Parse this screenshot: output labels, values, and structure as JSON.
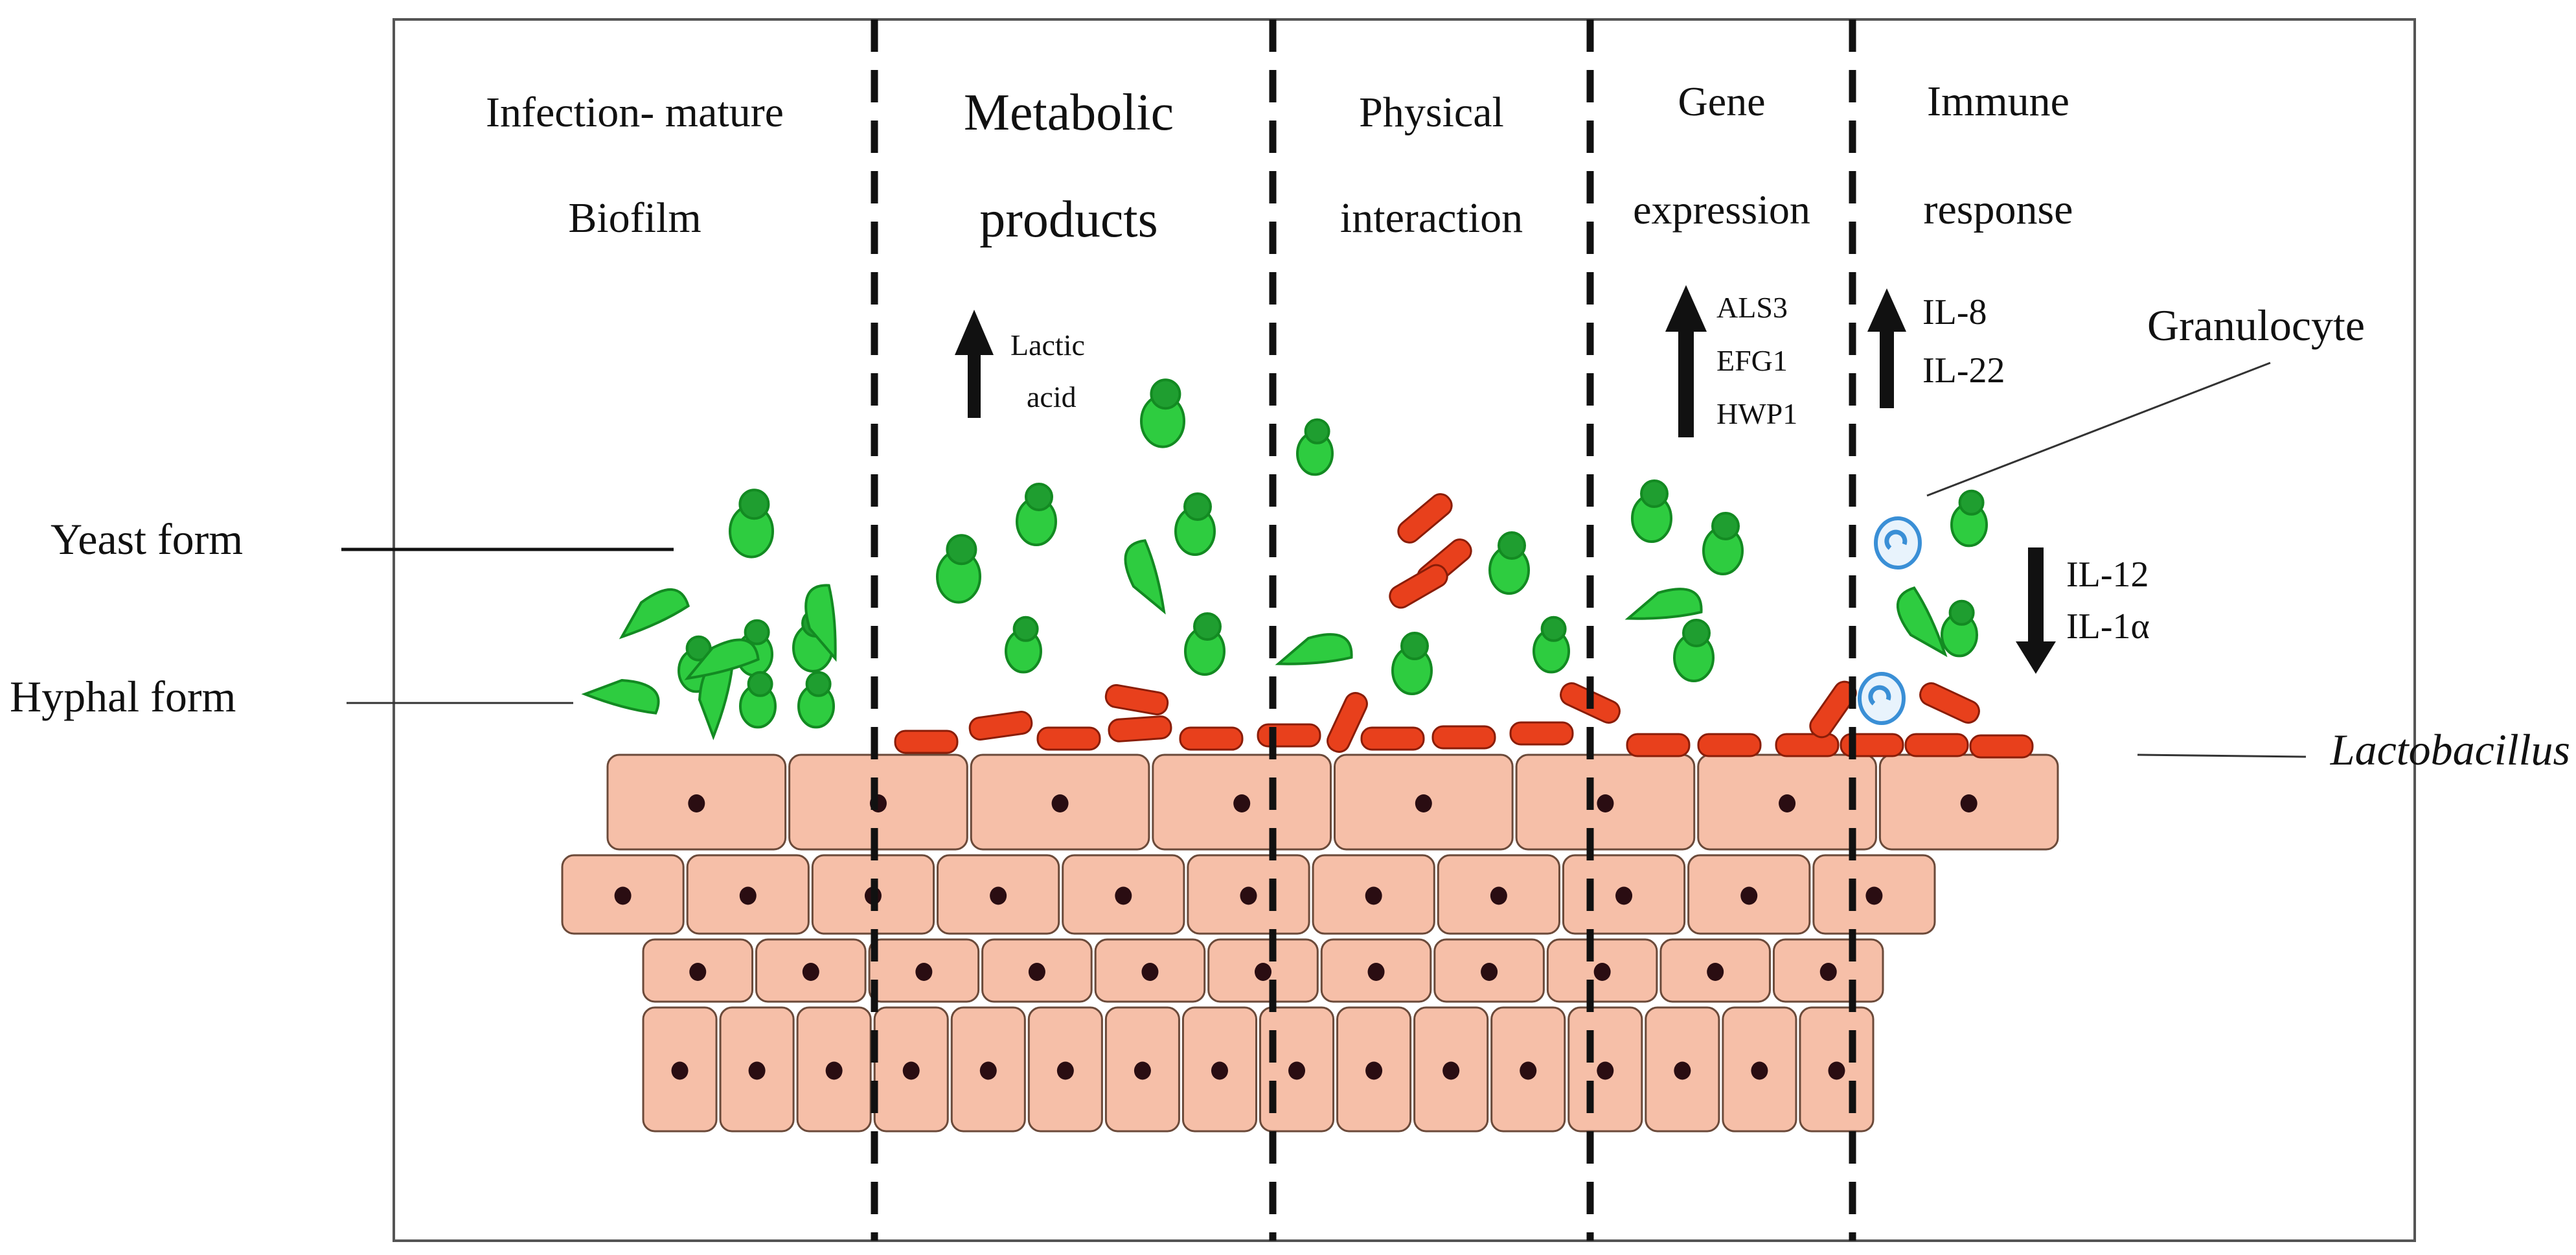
{
  "columns": [
    {
      "line1": "Infection- mature",
      "line2": "Biofilm"
    },
    {
      "line1": "Metabolic",
      "line2": "products"
    },
    {
      "line1": "Physical",
      "line2": "interaction"
    },
    {
      "line1": "Gene",
      "line2": "expression"
    },
    {
      "line1": "Immune",
      "line2": "response"
    }
  ],
  "metabolic": {
    "line1": "Lactic",
    "line2": "acid",
    "direction": "up"
  },
  "genes": {
    "items": [
      "ALS3",
      "EFG1",
      "HWP1"
    ],
    "direction": "up"
  },
  "immune_up": {
    "items": [
      "IL-8",
      "IL-22"
    ],
    "direction": "up"
  },
  "immune_down": {
    "items": [
      "IL-12",
      "IL-1α"
    ],
    "direction": "down"
  },
  "labels": {
    "yeast": "Yeast form",
    "hyphal": "Hyphal form",
    "granulocyte": "Granulocyte",
    "lactobacillus": "Lactobacillus"
  },
  "colors": {
    "candida": "#2ecc40",
    "candida_dark": "#138a22",
    "lactobacillus": "#e8401c",
    "epithelium": "#f6bfa8",
    "nucleus": "#2a0d12",
    "granulocyte": "#3a8fd6"
  }
}
